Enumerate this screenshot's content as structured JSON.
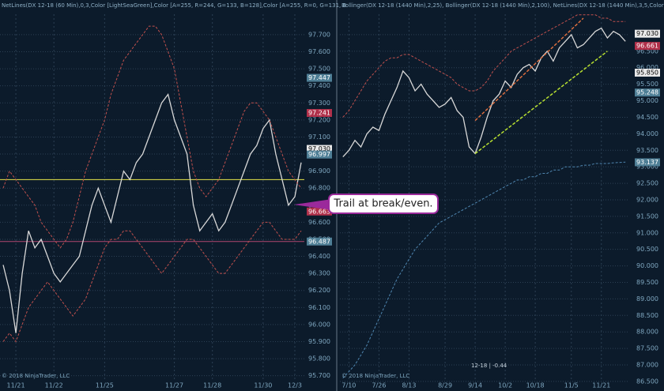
{
  "chart_data": [
    {
      "type": "line",
      "header": "NetLines(DX 12-18 (60 Min),0,3,Color [LightSeaGreen],Color [A=255, R=244, G=133, B=128],Color [A=255, R=0, G=131, B",
      "copyright": "© 2018 NinjaTrader, LLC",
      "annotation": "Trail at break/even.",
      "categories": [
        null,
        null,
        "11/21",
        null,
        null,
        null,
        null,
        null,
        "11/22",
        null,
        null,
        null,
        null,
        null,
        null,
        null,
        "11/25",
        null,
        null,
        null,
        null,
        null,
        null,
        null,
        null,
        null,
        null,
        "11/27",
        null,
        null,
        null,
        null,
        null,
        "11/28",
        null,
        null,
        null,
        null,
        null,
        null,
        null,
        "11/30",
        null,
        null,
        null,
        null,
        "12/3",
        null
      ],
      "series": [
        {
          "color": "#d8d8d8",
          "values": [
            96.35,
            96.2,
            95.95,
            96.3,
            96.55,
            96.45,
            96.5,
            96.4,
            96.3,
            96.25,
            96.3,
            96.35,
            96.4,
            96.55,
            96.7,
            96.8,
            96.7,
            96.6,
            96.75,
            96.9,
            96.85,
            96.95,
            97.0,
            97.1,
            97.2,
            97.3,
            97.35,
            97.2,
            97.1,
            97.0,
            96.7,
            96.55,
            96.6,
            96.65,
            96.55,
            96.6,
            96.7,
            96.8,
            96.9,
            97.0,
            97.05,
            97.15,
            97.2,
            97.0,
            96.85,
            96.7,
            96.75,
            96.95
          ]
        },
        {
          "color": "#c0504d",
          "values": [
            96.8,
            96.9,
            96.85,
            96.8,
            96.75,
            96.7,
            96.6,
            96.55,
            96.5,
            96.45,
            96.5,
            96.6,
            96.75,
            96.9,
            97.0,
            97.1,
            97.2,
            97.35,
            97.45,
            97.55,
            97.6,
            97.65,
            97.7,
            97.75,
            97.75,
            97.7,
            97.6,
            97.5,
            97.3,
            97.1,
            96.9,
            96.8,
            96.75,
            96.8,
            96.85,
            96.95,
            97.05,
            97.15,
            97.25,
            97.3,
            97.3,
            97.25,
            97.2,
            97.1,
            97.0,
            96.9,
            96.85,
            96.8
          ]
        },
        {
          "color": "#c0504d",
          "values": [
            95.9,
            95.95,
            95.9,
            96.0,
            96.1,
            96.15,
            96.2,
            96.25,
            96.2,
            96.15,
            96.1,
            96.05,
            96.1,
            96.15,
            96.25,
            96.35,
            96.45,
            96.5,
            96.5,
            96.55,
            96.55,
            96.5,
            96.45,
            96.4,
            96.35,
            96.3,
            96.35,
            96.4,
            96.45,
            96.5,
            96.5,
            96.45,
            96.4,
            96.35,
            96.3,
            96.3,
            96.35,
            96.4,
            96.45,
            96.5,
            96.55,
            96.6,
            96.6,
            96.55,
            96.5,
            96.5,
            96.5,
            96.55
          ]
        }
      ],
      "ylim": [
        95.68,
        97.82
      ],
      "yticks": [
        {
          "value": 95.7,
          "label": "95.700"
        },
        {
          "value": 95.8,
          "label": "95.800"
        },
        {
          "value": 95.9,
          "label": "95.900"
        },
        {
          "value": 96,
          "label": "96.000"
        },
        {
          "value": 96.1,
          "label": "96.100"
        },
        {
          "value": 96.2,
          "label": "96.200"
        },
        {
          "value": 96.3,
          "label": "96.300"
        },
        {
          "value": 96.4,
          "label": "96.400"
        },
        {
          "value": 96.5,
          "label": "96.500"
        },
        {
          "value": 96.6,
          "label": "96.600"
        },
        {
          "value": 96.7,
          "label": "96.700"
        },
        {
          "value": 96.8,
          "label": "96.800"
        },
        {
          "value": 96.9,
          "label": "96.900"
        },
        {
          "value": 97,
          "label": "97.000"
        },
        {
          "value": 97.1,
          "label": "97.100"
        },
        {
          "value": 97.2,
          "label": "97.200"
        },
        {
          "value": 97.3,
          "label": "97.300"
        },
        {
          "value": 97.4,
          "label": "97.400"
        },
        {
          "value": 97.5,
          "label": "97.500"
        },
        {
          "value": 97.6,
          "label": "97.600"
        },
        {
          "value": 97.7,
          "label": "97.700"
        }
      ],
      "hlines": [
        {
          "value": 96.85,
          "color": "#e6e64a"
        },
        {
          "value": 96.487,
          "color": "#b04870"
        }
      ],
      "markers": [
        {
          "value": 97.447,
          "color": "#4f7f96"
        },
        {
          "value": 97.241,
          "color": "#b0304a"
        },
        {
          "value": 97.03,
          "label": "97.030",
          "color": "#e8e8e8"
        },
        {
          "value": 96.997,
          "color": "#4f7f96"
        },
        {
          "value": 96.663,
          "color": "#b0304a"
        },
        {
          "value": 96.487,
          "color": "#4f7f96"
        }
      ]
    },
    {
      "type": "line",
      "header": "Bollinger(DX 12-18 (1440 Min),2,25), Bollinger(DX 12-18 (1440 Min),2,100), NetLines(DX 12-18 (1440 Min),3,5,Color B",
      "copyright": "© 2018 NinjaTrader, LLC",
      "status": "12-18 | -0.44",
      "categories": [
        null,
        "7/10",
        null,
        null,
        null,
        null,
        "7/26",
        null,
        null,
        null,
        null,
        "8/13",
        null,
        null,
        null,
        null,
        null,
        "8/29",
        null,
        null,
        null,
        null,
        "9/14",
        null,
        null,
        null,
        null,
        "10/2",
        null,
        null,
        null,
        null,
        "10/18",
        null,
        null,
        null,
        null,
        null,
        "11/5",
        null,
        null,
        null,
        null,
        "11/21",
        null,
        null,
        null,
        null
      ],
      "series": [
        {
          "color": "#d8d8d8",
          "values": [
            93.3,
            93.5,
            93.8,
            93.6,
            94.0,
            94.2,
            94.1,
            94.6,
            95.0,
            95.4,
            95.9,
            95.7,
            95.3,
            95.5,
            95.2,
            95.0,
            94.8,
            94.9,
            95.1,
            94.7,
            94.5,
            93.6,
            93.4,
            93.9,
            94.5,
            95.0,
            95.2,
            95.6,
            95.4,
            95.8,
            96.0,
            96.1,
            95.9,
            96.3,
            96.5,
            96.2,
            96.6,
            96.8,
            97.0,
            96.6,
            96.7,
            96.9,
            97.1,
            97.2,
            96.9,
            97.1,
            97.0,
            96.8
          ]
        },
        {
          "color": "#c0504d",
          "values": [
            94.5,
            94.7,
            95.0,
            95.3,
            95.6,
            95.8,
            96.0,
            96.2,
            96.3,
            96.3,
            96.4,
            96.4,
            96.3,
            96.2,
            96.1,
            96.0,
            95.9,
            95.8,
            95.7,
            95.5,
            95.4,
            95.3,
            95.3,
            95.4,
            95.6,
            95.9,
            96.1,
            96.3,
            96.5,
            96.6,
            96.7,
            96.8,
            96.9,
            97.0,
            97.1,
            97.2,
            97.3,
            97.4,
            97.5,
            97.6,
            97.6,
            97.6,
            97.6,
            97.5,
            97.5,
            97.4,
            97.4,
            97.4
          ]
        },
        {
          "color": "#4f86b0",
          "values": [
            86.6,
            86.8,
            87.0,
            87.3,
            87.6,
            88.0,
            88.4,
            88.8,
            89.2,
            89.6,
            89.9,
            90.2,
            90.5,
            90.7,
            90.9,
            91.1,
            91.3,
            91.4,
            91.5,
            91.6,
            91.7,
            91.8,
            91.9,
            92.0,
            92.1,
            92.2,
            92.3,
            92.4,
            92.5,
            92.6,
            92.6,
            92.7,
            92.7,
            92.8,
            92.8,
            92.9,
            92.9,
            93.0,
            93.0,
            93.0,
            93.05,
            93.05,
            93.1,
            93.1,
            93.1,
            93.12,
            93.13,
            93.14
          ]
        }
      ],
      "ylim": [
        86.57,
        97.62
      ],
      "yticks": [
        {
          "value": 86.5,
          "label": "86.500"
        },
        {
          "value": 87,
          "label": "87.000"
        },
        {
          "value": 87.5,
          "label": "87.500"
        },
        {
          "value": 88,
          "label": "88.000"
        },
        {
          "value": 88.5,
          "label": "88.500"
        },
        {
          "value": 89,
          "label": "89.000"
        },
        {
          "value": 89.5,
          "label": "89.500"
        },
        {
          "value": 90,
          "label": "90.000"
        },
        {
          "value": 90.5,
          "label": "90.500"
        },
        {
          "value": 91,
          "label": "91.000"
        },
        {
          "value": 91.5,
          "label": "91.500"
        },
        {
          "value": 92,
          "label": "92.000"
        },
        {
          "value": 92.5,
          "label": "92.500"
        },
        {
          "value": 93,
          "label": "93.000"
        },
        {
          "value": 93.5,
          "label": "93.500"
        },
        {
          "value": 94,
          "label": "94.000"
        },
        {
          "value": 94.5,
          "label": "94.500"
        },
        {
          "value": 95,
          "label": "95.000"
        },
        {
          "value": 95.5,
          "label": "95.500"
        },
        {
          "value": 96,
          "label": "96.000"
        },
        {
          "value": 96.5,
          "label": "96.500"
        },
        {
          "value": 97,
          "label": "97.000"
        }
      ],
      "trendlines": [
        {
          "color": "#e07040",
          "points": [
            [
              22,
              94.4
            ],
            [
              40,
              97.5
            ]
          ]
        },
        {
          "color": "#b8e030",
          "points": [
            [
              22,
              93.4
            ],
            [
              44,
              96.5
            ]
          ]
        }
      ],
      "markers": [
        {
          "value": 97.03,
          "label": "97.030",
          "color": "#e8e8e8"
        },
        {
          "value": 96.661,
          "color": "#b0304a"
        },
        {
          "value": 95.85,
          "label": "95.850",
          "color": "#e8e8e8"
        },
        {
          "value": 95.248,
          "color": "#4f7f96"
        },
        {
          "value": 93.137,
          "color": "#4f7f96"
        }
      ]
    }
  ]
}
